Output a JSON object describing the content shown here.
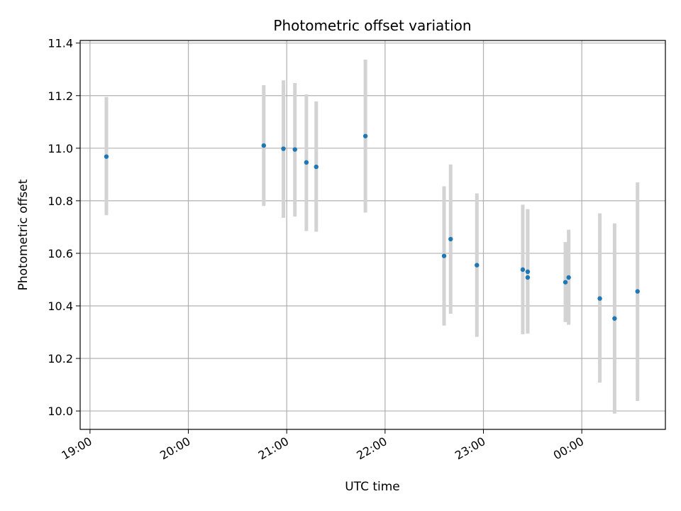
{
  "chart_data": {
    "type": "scatter",
    "title": "Photometric offset variation",
    "xlabel": "UTC time",
    "ylabel": "Photometric offset",
    "x_tick_labels": [
      "19:00",
      "20:00",
      "21:00",
      "22:00",
      "23:00",
      "00:00"
    ],
    "y_tick_labels": [
      "10.0",
      "10.2",
      "10.4",
      "10.6",
      "10.8",
      "11.0",
      "11.2",
      "11.4"
    ],
    "xlim": [
      "18:54",
      "00:51"
    ],
    "ylim": [
      9.93,
      11.41
    ],
    "grid": true,
    "marker_color": "#1f77b4",
    "errorbar_color": "#d3d3d3",
    "points": [
      {
        "time": "19:10",
        "y": 10.968,
        "ylow": 10.745,
        "yhigh": 11.195
      },
      {
        "time": "20:46",
        "y": 11.01,
        "ylow": 10.78,
        "yhigh": 11.24
      },
      {
        "time": "20:58",
        "y": 10.998,
        "ylow": 10.735,
        "yhigh": 11.258
      },
      {
        "time": "21:05",
        "y": 10.995,
        "ylow": 10.74,
        "yhigh": 11.248
      },
      {
        "time": "21:12",
        "y": 10.946,
        "ylow": 10.685,
        "yhigh": 11.205
      },
      {
        "time": "21:18",
        "y": 10.929,
        "ylow": 10.682,
        "yhigh": 11.178
      },
      {
        "time": "21:48",
        "y": 11.046,
        "ylow": 10.755,
        "yhigh": 11.337
      },
      {
        "time": "22:36",
        "y": 10.59,
        "ylow": 10.325,
        "yhigh": 10.855
      },
      {
        "time": "22:40",
        "y": 10.654,
        "ylow": 10.37,
        "yhigh": 10.938
      },
      {
        "time": "22:56",
        "y": 10.555,
        "ylow": 10.282,
        "yhigh": 10.828
      },
      {
        "time": "23:24",
        "y": 10.538,
        "ylow": 10.292,
        "yhigh": 10.785
      },
      {
        "time": "23:27",
        "y": 10.53,
        "ylow": 10.295,
        "yhigh": 10.768
      },
      {
        "time": "23:27",
        "y": 10.508,
        "ylow": 10.295,
        "yhigh": 10.768
      },
      {
        "time": "23:50",
        "y": 10.49,
        "ylow": 10.338,
        "yhigh": 10.643
      },
      {
        "time": "23:52",
        "y": 10.508,
        "ylow": 10.328,
        "yhigh": 10.69
      },
      {
        "time": "00:11",
        "y": 10.428,
        "ylow": 10.108,
        "yhigh": 10.752
      },
      {
        "time": "00:20",
        "y": 10.352,
        "ylow": 9.99,
        "yhigh": 10.714
      },
      {
        "time": "00:34",
        "y": 10.455,
        "ylow": 10.038,
        "yhigh": 10.87
      }
    ]
  }
}
